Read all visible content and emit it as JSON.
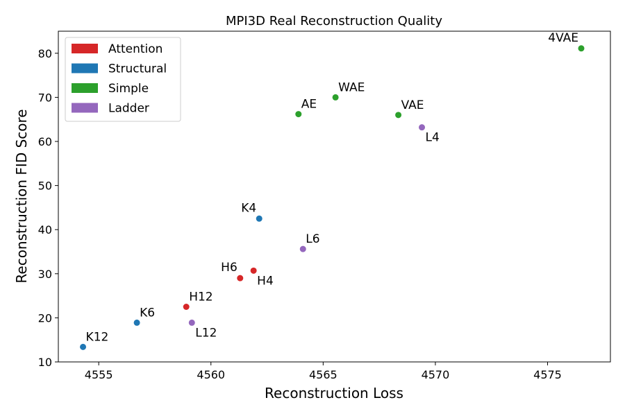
{
  "chart_data": {
    "type": "scatter",
    "title": "MPI3D Real Reconstruction Quality",
    "xlabel": "Reconstruction Loss",
    "ylabel": "Reconstruction FID Score",
    "xlim": [
      4553.2,
      4577.8
    ],
    "ylim": [
      10,
      85
    ],
    "xticks": [
      4555,
      4560,
      4565,
      4570,
      4575
    ],
    "yticks": [
      10,
      20,
      30,
      40,
      50,
      60,
      70,
      80
    ],
    "grid": false,
    "legend_position": "top-left",
    "groups": [
      {
        "name": "Attention",
        "color": "#d62728"
      },
      {
        "name": "Structural",
        "color": "#1f77b4"
      },
      {
        "name": "Simple",
        "color": "#2ca02c"
      },
      {
        "name": "Ladder",
        "color": "#9467bd"
      }
    ],
    "points": [
      {
        "label": "4VAE",
        "x": 4576.5,
        "y": 81.1,
        "group": "Simple",
        "label_pos": "upper-left"
      },
      {
        "label": "WAE",
        "x": 4565.55,
        "y": 70.0,
        "group": "Simple",
        "label_pos": "upper-right"
      },
      {
        "label": "AE",
        "x": 4563.9,
        "y": 66.2,
        "group": "Simple",
        "label_pos": "upper-right"
      },
      {
        "label": "VAE",
        "x": 4568.35,
        "y": 66.0,
        "group": "Simple",
        "label_pos": "upper-right"
      },
      {
        "label": "L4",
        "x": 4569.4,
        "y": 63.2,
        "group": "Ladder",
        "label_pos": "lower-right"
      },
      {
        "label": "K4",
        "x": 4562.15,
        "y": 42.5,
        "group": "Structural",
        "label_pos": "upper-left"
      },
      {
        "label": "L6",
        "x": 4564.1,
        "y": 35.6,
        "group": "Ladder",
        "label_pos": "upper-right"
      },
      {
        "label": "H6",
        "x": 4561.3,
        "y": 29.0,
        "group": "Attention",
        "label_pos": "upper-left"
      },
      {
        "label": "H4",
        "x": 4561.9,
        "y": 30.7,
        "group": "Attention",
        "label_pos": "lower-right"
      },
      {
        "label": "H12",
        "x": 4558.9,
        "y": 22.5,
        "group": "Attention",
        "label_pos": "upper-right"
      },
      {
        "label": "K6",
        "x": 4556.7,
        "y": 18.9,
        "group": "Structural",
        "label_pos": "upper-right"
      },
      {
        "label": "L12",
        "x": 4559.15,
        "y": 18.9,
        "group": "Ladder",
        "label_pos": "lower-right"
      },
      {
        "label": "K12",
        "x": 4554.3,
        "y": 13.4,
        "group": "Structural",
        "label_pos": "upper-right"
      }
    ]
  }
}
